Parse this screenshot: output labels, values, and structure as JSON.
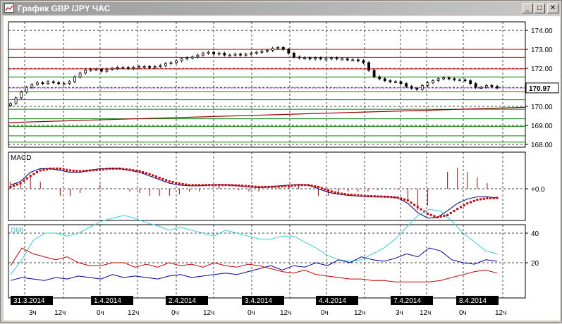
{
  "window": {
    "title": "График GBP /JPY  ЧАС"
  },
  "buttons": {
    "minimize": "_",
    "maximize": "□",
    "close": "✕"
  },
  "icons": {
    "app": "chart-icon",
    "minimize": "minimize-icon",
    "maximize": "maximize-icon",
    "close": "close-icon"
  },
  "colors": {
    "candles": "#000000",
    "red_levels": "#cc0000",
    "green_levels": "#008000",
    "current_line": "#8800cc",
    "macd_line": "#000080",
    "macd_signal": "#cc0000",
    "dmi_adx": "#33ccdd",
    "dmi_plus": "#000099",
    "dmi_minus": "#cc0000",
    "date_label_bg": "#000000"
  },
  "price_panel": {
    "y_ticks": [
      "174.00",
      "173.00",
      "172.00",
      "171.00",
      "170.00",
      "169.00",
      "168.00"
    ],
    "current_price": "170.97",
    "red_levels": [
      173.0,
      172.58,
      171.97
    ],
    "green_levels": [
      171.55,
      170.78,
      170.35,
      169.85,
      169.35,
      168.95,
      168.45,
      168.12
    ],
    "trendline": {
      "from": 169.15,
      "to": 169.95
    }
  },
  "macd_panel": {
    "label": "MACD",
    "zero_label": "+0.0"
  },
  "dmi_panel": {
    "label": "DMI",
    "y_ticks": [
      "40",
      "20"
    ]
  },
  "time_axis": {
    "dates": [
      "31.3.2014",
      "1.4.2014",
      "2.4.2014",
      "3.4.2014",
      "4.4.2014",
      "7.4.2014",
      "8.4.2014"
    ],
    "hour_labels": [
      "3ч",
      "12ч",
      "0ч",
      "12ч",
      "0ч",
      "12ч",
      "0ч",
      "12ч",
      "0ч",
      "12ч",
      "3ч",
      "12ч",
      "0ч",
      "12ч"
    ]
  },
  "chart_data": [
    {
      "type": "candlestick",
      "title": "График GBP /JPY  ЧАС",
      "ylim": [
        168.0,
        174.3
      ],
      "y_ticks": [
        174,
        173,
        172,
        171,
        170,
        169,
        168
      ],
      "last_price": 170.97,
      "close": [
        170.15,
        170.45,
        170.75,
        171.0,
        171.15,
        171.25,
        171.2,
        171.3,
        171.25,
        171.2,
        171.2,
        171.3,
        171.55,
        171.75,
        171.9,
        171.95,
        171.95,
        171.85,
        171.95,
        172.0,
        172.05,
        172.05,
        172.0,
        172.05,
        172.1,
        172.1,
        172.05,
        172.1,
        172.15,
        172.25,
        172.3,
        172.4,
        172.5,
        172.55,
        172.6,
        172.7,
        172.8,
        172.85,
        172.75,
        172.8,
        172.7,
        172.7,
        172.75,
        172.7,
        172.75,
        172.8,
        172.85,
        172.9,
        172.95,
        173.05,
        173.1,
        173.0,
        172.8,
        172.6,
        172.55,
        172.55,
        172.5,
        172.55,
        172.5,
        172.5,
        172.55,
        172.5,
        172.5,
        172.45,
        172.45,
        172.4,
        172.3,
        171.9,
        171.55,
        171.45,
        171.35,
        171.3,
        171.3,
        171.2,
        171.05,
        170.95,
        170.9,
        171.1,
        171.25,
        171.35,
        171.45,
        171.5,
        171.45,
        171.4,
        171.4,
        171.35,
        171.2,
        171.0,
        171.0,
        171.1,
        171.05,
        170.97
      ]
    },
    {
      "type": "line",
      "title": "MACD",
      "zero_label": "+0.0",
      "series": [
        {
          "values": [
            0.1,
            0.2,
            0.45,
            0.55,
            0.55,
            0.5,
            0.45,
            0.45,
            0.5,
            0.55,
            0.55,
            0.55,
            0.5,
            0.45,
            0.35,
            0.25,
            0.15,
            0.1,
            0.08,
            0.08,
            0.1,
            0.12,
            0.1,
            0.08,
            0.05,
            0.03,
            0.05,
            0.08,
            0.1,
            0.12,
            0.1,
            0.0,
            -0.1,
            -0.15,
            -0.18,
            -0.2,
            -0.22,
            -0.22,
            -0.22,
            -0.25,
            -0.4,
            -0.65,
            -0.8,
            -0.78,
            -0.6,
            -0.4,
            -0.28,
            -0.22,
            -0.22,
            -0.25
          ]
        },
        {
          "values": [
            0.05,
            0.15,
            0.35,
            0.5,
            0.55,
            0.55,
            0.5,
            0.48,
            0.5,
            0.52,
            0.55,
            0.55,
            0.52,
            0.48,
            0.4,
            0.3,
            0.2,
            0.14,
            0.1,
            0.1,
            0.1,
            0.1,
            0.1,
            0.09,
            0.07,
            0.05,
            0.05,
            0.06,
            0.08,
            0.1,
            0.1,
            0.05,
            -0.05,
            -0.12,
            -0.16,
            -0.18,
            -0.2,
            -0.21,
            -0.22,
            -0.24,
            -0.32,
            -0.5,
            -0.68,
            -0.78,
            -0.72,
            -0.55,
            -0.4,
            -0.3,
            -0.26,
            -0.25
          ]
        }
      ]
    },
    {
      "type": "line",
      "title": "DMI",
      "y_ticks": [
        40,
        20
      ],
      "series": [
        {
          "values": [
            12,
            22,
            35,
            40,
            40,
            38,
            40,
            44,
            48,
            50,
            52,
            50,
            47,
            45,
            42,
            44,
            42,
            40,
            38,
            42,
            40,
            38,
            36,
            36,
            38,
            38,
            34,
            30,
            25,
            22,
            21,
            22,
            26,
            30,
            36,
            44,
            52,
            56,
            55,
            48,
            40,
            34,
            28,
            26
          ]
        },
        {
          "values": [
            8,
            10,
            9,
            8,
            10,
            9,
            11,
            10,
            9,
            12,
            10,
            11,
            10,
            9,
            11,
            12,
            10,
            11,
            12,
            13,
            12,
            14,
            16,
            18,
            15,
            18,
            17,
            20,
            18,
            22,
            20,
            24,
            22,
            21,
            23,
            26,
            24,
            30,
            28,
            22,
            20,
            19,
            22,
            21
          ]
        },
        {
          "values": [
            18,
            30,
            26,
            24,
            22,
            24,
            20,
            18,
            18,
            20,
            20,
            17,
            19,
            17,
            20,
            18,
            19,
            17,
            20,
            18,
            17,
            19,
            18,
            16,
            14,
            13,
            15,
            12,
            11,
            10,
            9,
            9,
            8,
            8,
            7,
            7,
            7,
            7,
            8,
            10,
            12,
            14,
            15,
            13
          ]
        }
      ]
    }
  ]
}
